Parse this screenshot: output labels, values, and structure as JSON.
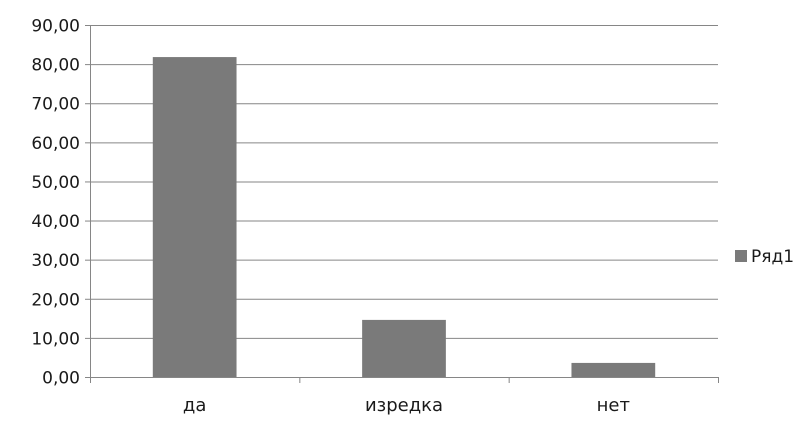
{
  "chart_data": {
    "type": "bar",
    "title": "",
    "xlabel": "",
    "ylabel": "",
    "categories": [
      "да",
      "изредка",
      "нет"
    ],
    "series": [
      {
        "name": "Ряд1",
        "values": [
          81.8,
          14.6,
          3.6
        ],
        "color": "#7a7a7a"
      }
    ],
    "ylim": [
      0,
      90
    ],
    "yticks": [
      0,
      10,
      20,
      30,
      40,
      50,
      60,
      70,
      80,
      90
    ],
    "ytick_labels": [
      "0,00",
      "10,00",
      "20,00",
      "30,00",
      "40,00",
      "50,00",
      "60,00",
      "70,00",
      "80,00",
      "90,00"
    ],
    "grid": true,
    "legend": "right",
    "colors": {
      "grid": "#868686",
      "axis": "#868686",
      "text": "#1a1a1a"
    }
  }
}
